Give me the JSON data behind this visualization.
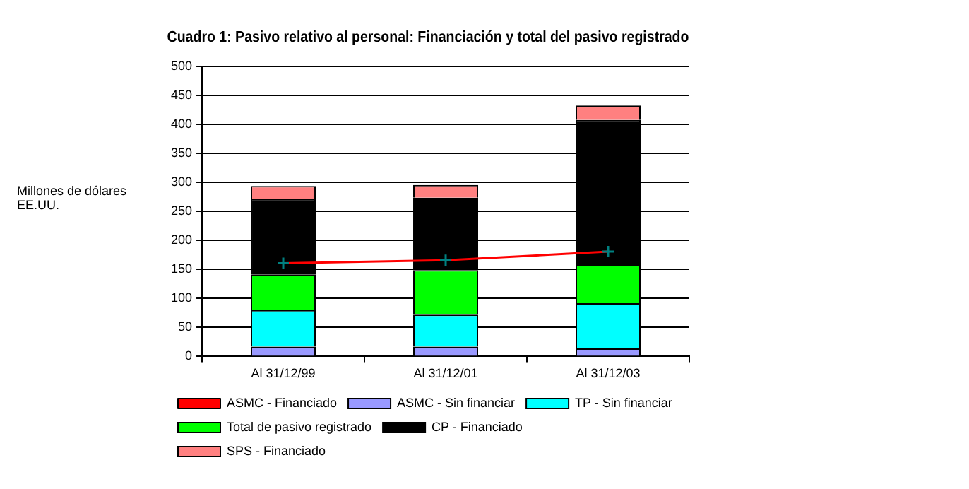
{
  "chart_data": {
    "type": "bar",
    "title": "Cuadro 1: Pasivo relativo al personal: Financiación y total del pasivo registrado",
    "ylabel": "Millones de dólares EE.UU.",
    "categories": [
      "Al 31/12/99",
      "Al 31/12/01",
      "Al 31/12/03"
    ],
    "stacked": true,
    "ylim": [
      0,
      500
    ],
    "yticks": [
      0,
      50,
      100,
      150,
      200,
      250,
      300,
      350,
      400,
      450,
      500
    ],
    "grid": "y",
    "legend": "bottom",
    "series": [
      {
        "name": "ASMC - Sin financiar",
        "color": "#9999ff",
        "values": [
          17,
          17,
          14
        ]
      },
      {
        "name": "TP - Sin financiar",
        "color": "#00ffff",
        "values": [
          63,
          55,
          78
        ]
      },
      {
        "name": "Total de pasivo registrado",
        "color": "#00ff00",
        "values": [
          61,
          77,
          67
        ]
      },
      {
        "name": "CP - Financiado",
        "color": "#000000",
        "values": [
          131,
          125,
          249
        ]
      },
      {
        "name": "SPS - Financiado",
        "color": "#ff8080",
        "values": [
          22,
          22,
          25
        ]
      },
      {
        "name": "ASMC - Financiado",
        "type": "line",
        "color": "#ff0000",
        "marker": "cross",
        "values": [
          161,
          166,
          181
        ]
      }
    ]
  }
}
